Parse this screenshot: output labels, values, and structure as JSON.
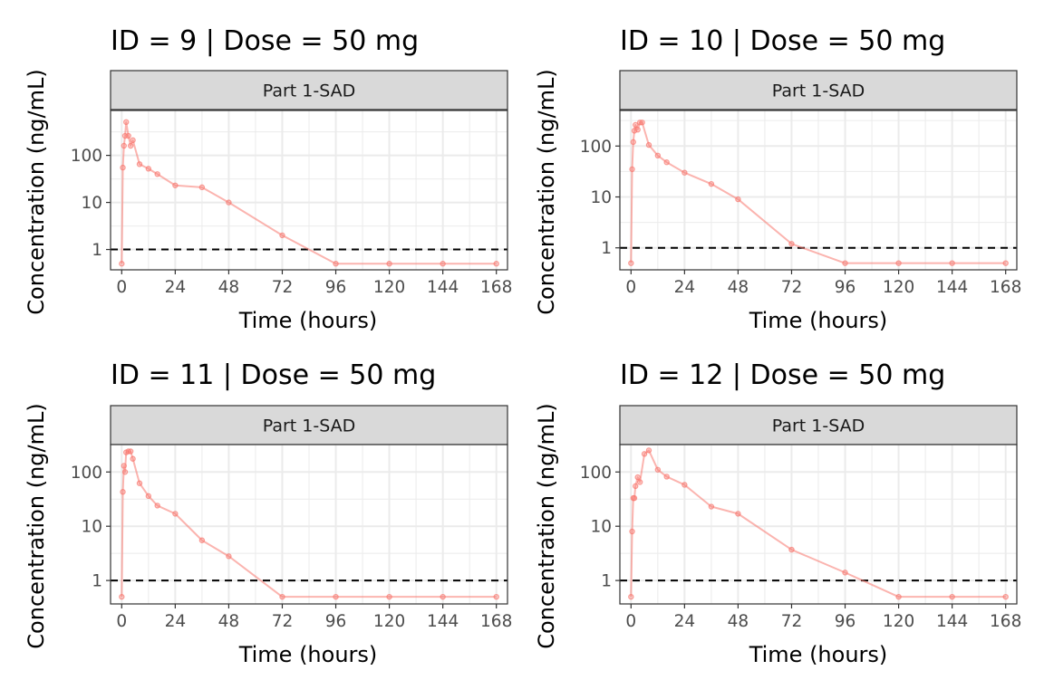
{
  "colors": {
    "series": "#f8766d",
    "strip_fill": "#d9d9d9",
    "panel_border": "#333333",
    "grid": "#ebebeb",
    "reference_line": "#000000"
  },
  "chart_data": [
    {
      "type": "line",
      "title": "ID = 9 | Dose = 50 mg",
      "strip": "Part 1-SAD",
      "xlabel": "Time (hours)",
      "ylabel": "Concentration (ng/mL)",
      "yscale": "log10",
      "xlim": [
        -5,
        173
      ],
      "ylim": [
        0.37,
        900
      ],
      "xticks": [
        0,
        24,
        48,
        72,
        96,
        120,
        144,
        168
      ],
      "xtick_labels": [
        "0",
        "24",
        "48",
        "72",
        "96",
        "120",
        "144",
        "168"
      ],
      "yticks": [
        1,
        10,
        100
      ],
      "ytick_labels": [
        "1",
        "10",
        "100"
      ],
      "reference_line_y": 1,
      "grid": true,
      "x": [
        0,
        0.5,
        1,
        1.5,
        2,
        3,
        4,
        5,
        8,
        12,
        16,
        24,
        36,
        48,
        72,
        96,
        120,
        144,
        168
      ],
      "y": [
        0.5,
        55,
        160,
        260,
        510,
        260,
        160,
        210,
        65,
        52,
        40,
        23,
        21,
        10,
        2,
        0.5,
        0.5,
        0.5,
        0.5
      ]
    },
    {
      "type": "line",
      "title": "ID = 10 | Dose = 50 mg",
      "strip": "Part 1-SAD",
      "xlabel": "Time (hours)",
      "ylabel": "Concentration (ng/mL)",
      "yscale": "log10",
      "xlim": [
        -5,
        173
      ],
      "ylim": [
        0.37,
        500
      ],
      "xticks": [
        0,
        24,
        48,
        72,
        96,
        120,
        144,
        168
      ],
      "xtick_labels": [
        "0",
        "24",
        "48",
        "72",
        "96",
        "120",
        "144",
        "168"
      ],
      "yticks": [
        1,
        10,
        100
      ],
      "ytick_labels": [
        "1",
        "10",
        "100"
      ],
      "reference_line_y": 1,
      "grid": true,
      "x": [
        0,
        0.5,
        1,
        1.5,
        2,
        3,
        4,
        5,
        8,
        12,
        16,
        24,
        36,
        48,
        72,
        96,
        120,
        144,
        168
      ],
      "y": [
        0.5,
        35,
        120,
        200,
        260,
        210,
        290,
        290,
        105,
        65,
        48,
        30,
        18,
        9,
        1.2,
        0.5,
        0.5,
        0.5,
        0.5
      ]
    },
    {
      "type": "line",
      "title": "ID = 11 | Dose = 50 mg",
      "strip": "Part 1-SAD",
      "xlabel": "Time (hours)",
      "ylabel": "Concentration (ng/mL)",
      "yscale": "log10",
      "xlim": [
        -5,
        173
      ],
      "ylim": [
        0.37,
        320
      ],
      "xticks": [
        0,
        24,
        48,
        72,
        96,
        120,
        144,
        168
      ],
      "xtick_labels": [
        "0",
        "24",
        "48",
        "72",
        "96",
        "120",
        "144",
        "168"
      ],
      "yticks": [
        1,
        10,
        100
      ],
      "ytick_labels": [
        "1",
        "10",
        "100"
      ],
      "reference_line_y": 1,
      "grid": true,
      "x": [
        0,
        0.5,
        1,
        1.5,
        2,
        3,
        4,
        5,
        8,
        12,
        16,
        24,
        36,
        48,
        72,
        96,
        120,
        144,
        168
      ],
      "y": [
        0.5,
        43,
        130,
        100,
        230,
        240,
        240,
        175,
        62,
        36,
        24,
        17,
        5.5,
        2.8,
        0.5,
        0.5,
        0.5,
        0.5,
        0.5
      ]
    },
    {
      "type": "line",
      "title": "ID = 12 | Dose = 50 mg",
      "strip": "Part 1-SAD",
      "xlabel": "Time (hours)",
      "ylabel": "Concentration (ng/mL)",
      "yscale": "log10",
      "xlim": [
        -5,
        173
      ],
      "ylim": [
        0.37,
        320
      ],
      "xticks": [
        0,
        24,
        48,
        72,
        96,
        120,
        144,
        168
      ],
      "xtick_labels": [
        "0",
        "24",
        "48",
        "72",
        "96",
        "120",
        "144",
        "168"
      ],
      "yticks": [
        1,
        10,
        100
      ],
      "ytick_labels": [
        "1",
        "10",
        "100"
      ],
      "reference_line_y": 1,
      "grid": true,
      "x": [
        0,
        0.5,
        1,
        1.5,
        2,
        3,
        4,
        6,
        8,
        12,
        16,
        24,
        36,
        48,
        72,
        96,
        120,
        144,
        168
      ],
      "y": [
        0.5,
        8,
        33,
        33,
        55,
        80,
        65,
        215,
        250,
        110,
        82,
        58,
        23,
        17,
        3.7,
        1.4,
        0.5,
        0.5,
        0.5
      ]
    }
  ]
}
